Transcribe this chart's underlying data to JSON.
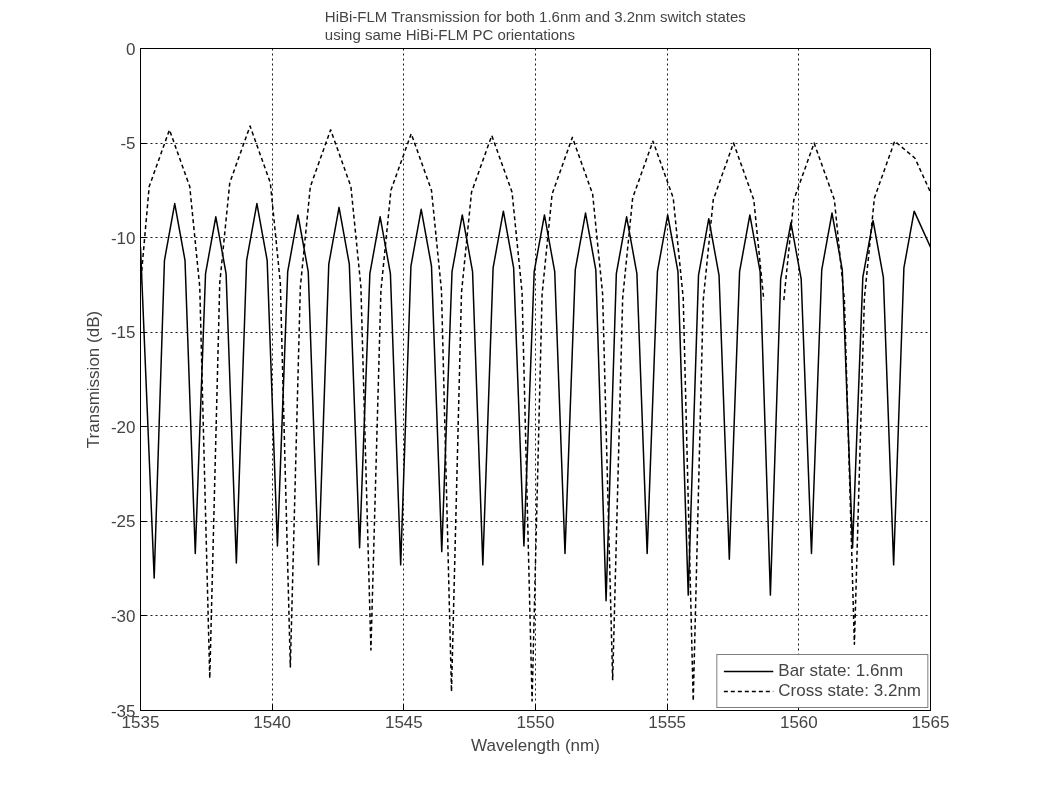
{
  "chart_data": {
    "type": "line",
    "title": "HiBi-FLM Transmission for both 1.6nm and 3.2nm switch states\nusing same HiBi-FLM PC orientations",
    "xlabel": "Wavelength (nm)",
    "ylabel": "Transmission (dB)",
    "xlim": [
      1535,
      1565
    ],
    "xticks": [
      1535,
      1540,
      1545,
      1550,
      1555,
      1560,
      1565
    ],
    "ylim": [
      -35,
      0
    ],
    "yticks": [
      -35,
      -30,
      -25,
      -20,
      -15,
      -10,
      -5,
      0
    ],
    "grid": true,
    "legend": "bottom right",
    "marker": "none",
    "series": [
      {
        "name": "Bar state: 1.6nm",
        "color": "#000000",
        "line_style": "solid",
        "x": [
          1535.0,
          1535.52,
          1535.91,
          1536.3,
          1536.69,
          1537.08,
          1537.47,
          1537.86,
          1538.25,
          1538.64,
          1539.03,
          1539.42,
          1539.81,
          1540.2,
          1540.59,
          1540.98,
          1541.37,
          1541.76,
          1542.15,
          1542.54,
          1542.93,
          1543.32,
          1543.71,
          1544.1,
          1544.49,
          1544.88,
          1545.27,
          1545.66,
          1546.05,
          1546.44,
          1546.83,
          1547.22,
          1547.61,
          1548.0,
          1548.39,
          1548.78,
          1549.17,
          1549.56,
          1549.95,
          1550.34,
          1550.73,
          1551.12,
          1551.51,
          1551.9,
          1552.29,
          1552.68,
          1553.07,
          1553.46,
          1553.85,
          1554.24,
          1554.63,
          1555.02,
          1555.41,
          1555.8,
          1556.19,
          1556.58,
          1556.97,
          1557.36,
          1557.75,
          1558.14,
          1558.53,
          1558.92,
          1559.31,
          1559.7,
          1560.09,
          1560.48,
          1560.87,
          1561.26,
          1561.65,
          1562.04,
          1562.43,
          1562.82,
          1563.21,
          1563.6,
          1563.99,
          1564.38,
          1565.0
        ],
        "values": [
          -10.5,
          -28.0,
          -11.2,
          -8.2,
          -11.2,
          -26.7,
          -11.9,
          -8.9,
          -11.9,
          -27.2,
          -11.2,
          -8.2,
          -11.2,
          -26.3,
          -11.8,
          -8.8,
          -11.8,
          -27.3,
          -11.4,
          -8.4,
          -11.4,
          -26.4,
          -11.9,
          -8.9,
          -11.9,
          -27.3,
          -11.5,
          -8.5,
          -11.5,
          -26.6,
          -11.8,
          -8.8,
          -11.8,
          -27.3,
          -11.6,
          -8.6,
          -11.6,
          -26.3,
          -11.8,
          -8.8,
          -11.8,
          -26.7,
          -11.7,
          -8.7,
          -11.7,
          -29.2,
          -11.9,
          -8.9,
          -11.9,
          -26.7,
          -11.8,
          -8.8,
          -11.8,
          -28.9,
          -12.0,
          -9.0,
          -12.0,
          -27.0,
          -11.8,
          -8.8,
          -11.8,
          -28.9,
          -12.2,
          -9.2,
          -12.2,
          -26.7,
          -11.7,
          -8.7,
          -11.7,
          -26.4,
          -12.1,
          -9.1,
          -12.1,
          -27.3,
          -11.6,
          -8.6,
          -10.5
        ]
      },
      {
        "name": "Cross state: 3.2nm",
        "color": "#000000",
        "line_style": "dashed",
        "x": [
          1535.0,
          1535.33,
          1536.1,
          1536.87,
          1537.25,
          1537.63,
          1538.01,
          1538.39,
          1539.16,
          1539.93,
          1540.31,
          1540.69,
          1541.07,
          1541.45,
          1542.22,
          1542.99,
          1543.37,
          1543.75,
          1544.13,
          1544.51,
          1545.28,
          1546.05,
          1546.43,
          1546.81,
          1547.19,
          1547.57,
          1548.34,
          1549.11,
          1549.49,
          1549.87,
          1550.25,
          1550.63,
          1551.4,
          1552.17,
          1552.55,
          1552.93,
          1553.31,
          1553.69,
          1554.46,
          1555.23,
          1555.61,
          1555.99,
          1556.37,
          1556.75,
          1557.52,
          1558.29,
          1558.67,
          1559.05,
          1559.43,
          1559.81,
          1560.58,
          1561.35,
          1561.73,
          1562.11,
          1562.49,
          1562.87,
          1563.64,
          1564.41,
          1565.0
        ],
        "values": [
          -12.5,
          -7.3,
          -4.3,
          -7.3,
          -12.6,
          -33.3,
          -12.4,
          -7.1,
          -4.1,
          -7.1,
          -12.4,
          -32.7,
          -12.6,
          -7.3,
          -4.3,
          -7.3,
          -12.6,
          -31.8,
          -12.8,
          -7.5,
          -4.5,
          -7.5,
          -12.8,
          -34.0,
          -12.9,
          -7.6,
          -4.6,
          -7.6,
          -12.9,
          -34.5,
          -13.0,
          -7.7,
          -4.7,
          -7.7,
          -13.0,
          -33.4,
          -13.2,
          -7.9,
          -4.9,
          -7.9,
          -13.2,
          -34.5,
          -13.3,
          -8.0,
          -5.0,
          -8.0,
          -13.3,
          null,
          -13.3,
          -8.0,
          -5.0,
          -8.0,
          -13.3,
          -31.5,
          -13.2,
          -7.9,
          -4.9,
          -5.8,
          -7.6
        ]
      }
    ]
  }
}
